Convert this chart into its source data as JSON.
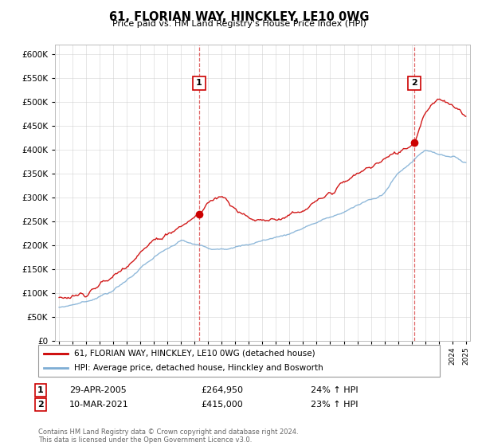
{
  "title": "61, FLORIAN WAY, HINCKLEY, LE10 0WG",
  "subtitle": "Price paid vs. HM Land Registry's House Price Index (HPI)",
  "ytick_vals": [
    0,
    50000,
    100000,
    150000,
    200000,
    250000,
    300000,
    350000,
    400000,
    450000,
    500000,
    550000,
    600000
  ],
  "ylim": [
    0,
    620000
  ],
  "sale1_year": 2005.33,
  "sale1_price": 264950,
  "sale2_year": 2021.19,
  "sale2_price": 415000,
  "legend_line1": "61, FLORIAN WAY, HINCKLEY, LE10 0WG (detached house)",
  "legend_line2": "HPI: Average price, detached house, Hinckley and Bosworth",
  "annotation1_date": "29-APR-2005",
  "annotation1_price": "£264,950",
  "annotation1_hpi": "24% ↑ HPI",
  "annotation2_date": "10-MAR-2021",
  "annotation2_price": "£415,000",
  "annotation2_hpi": "23% ↑ HPI",
  "footer": "Contains HM Land Registry data © Crown copyright and database right 2024.\nThis data is licensed under the Open Government Licence v3.0.",
  "line_color_red": "#cc0000",
  "line_color_blue": "#7dadd4",
  "vline_color": "#cc0000",
  "background_color": "#ffffff",
  "grid_color": "#cccccc"
}
